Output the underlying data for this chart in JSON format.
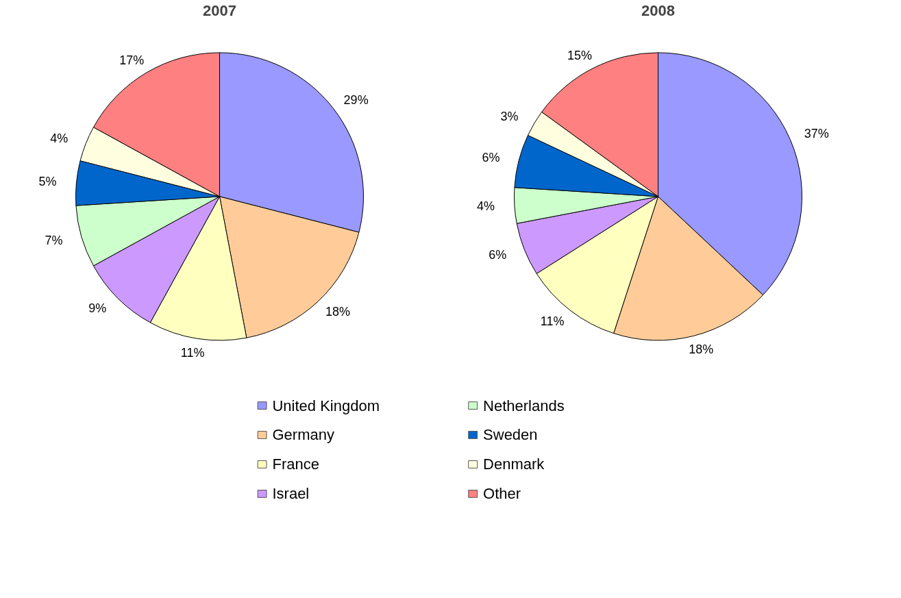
{
  "chart_data": [
    {
      "type": "pie",
      "title": "2007",
      "categories": [
        "United Kingdom",
        "Germany",
        "France",
        "Israel",
        "Netherlands",
        "Sweden",
        "Denmark",
        "Other"
      ],
      "values": [
        29,
        18,
        11,
        9,
        7,
        5,
        4,
        17
      ],
      "value_labels": [
        "29%",
        "18%",
        "11%",
        "9%",
        "7%",
        "5%",
        "4%",
        "17%"
      ],
      "colors": [
        "#9999ff",
        "#ffcc99",
        "#ffffc0",
        "#cc99ff",
        "#ccffcc",
        "#0066cc",
        "#ffffe0",
        "#ff8080"
      ],
      "legend": "bottom"
    },
    {
      "type": "pie",
      "title": "2008",
      "categories": [
        null,
        null,
        null,
        null,
        null,
        null,
        null,
        null
      ],
      "values": [
        37,
        18,
        11,
        6,
        4,
        6,
        3,
        15
      ],
      "value_labels": [
        "37%",
        "18%",
        "11%",
        "6%",
        "4%",
        "6%",
        "3%",
        "15%"
      ],
      "colors": [
        "#9999ff",
        "#ffcc99",
        "#ffffc0",
        "#cc99ff",
        "#ccffcc",
        "#0066cc",
        "#ffffe0",
        "#ff8080"
      ]
    }
  ]
}
